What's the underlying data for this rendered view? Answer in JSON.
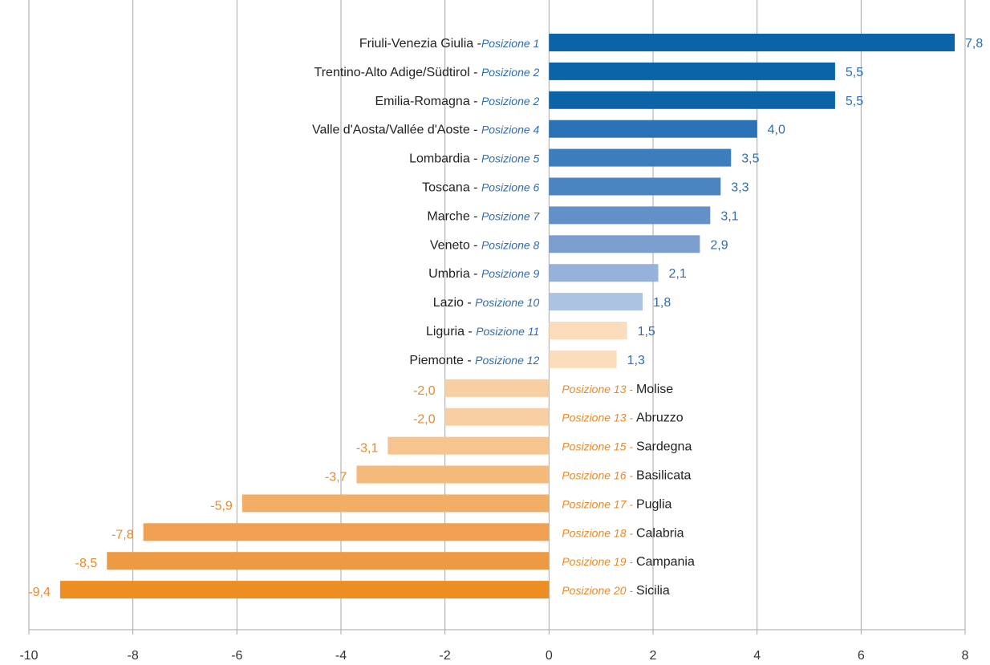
{
  "chart_data": {
    "type": "bar",
    "orientation": "horizontal",
    "xlim": [
      -10,
      8
    ],
    "xticks": [
      "-10",
      "-8",
      "-6",
      "-4",
      "-2",
      "0",
      "2",
      "4",
      "6",
      "8"
    ],
    "grid": true,
    "title": "",
    "xlabel": "",
    "ylabel": "",
    "colors": {
      "positive_text": "#2e6db4",
      "negative_text": "#e8892a",
      "label_text": "#222222"
    },
    "rows": [
      {
        "region": "Friuli-Venezia Giulia",
        "sep": " -",
        "pos": "Posizione 1",
        "value": 7.8,
        "value_label": "7,8",
        "color": "#0b64a8"
      },
      {
        "region": "Trentino-Alto Adige/Südtirol",
        "sep": " - ",
        "pos": "Posizione 2",
        "value": 5.5,
        "value_label": "5,5",
        "color": "#0b64a8"
      },
      {
        "region": "Emilia-Romagna",
        "sep": " - ",
        "pos": "Posizione 2",
        "value": 5.5,
        "value_label": "5,5",
        "color": "#0b64a8"
      },
      {
        "region": "Valle d'Aosta/Vallée d'Aoste",
        "sep": " - ",
        "pos": "Posizione 4",
        "value": 4.0,
        "value_label": "4,0",
        "color": "#2a72b5"
      },
      {
        "region": "Lombardia",
        "sep": " - ",
        "pos": "Posizione 5",
        "value": 3.5,
        "value_label": "3,5",
        "color": "#3c7dbd"
      },
      {
        "region": "Toscana",
        "sep": " - ",
        "pos": "Posizione 6",
        "value": 3.3,
        "value_label": "3,3",
        "color": "#4a85c1"
      },
      {
        "region": "Marche",
        "sep": " - ",
        "pos": "Posizione 7",
        "value": 3.1,
        "value_label": "3,1",
        "color": "#6391c7"
      },
      {
        "region": "Veneto",
        "sep": " - ",
        "pos": "Posizione 8",
        "value": 2.9,
        "value_label": "2,9",
        "color": "#7d9fd0"
      },
      {
        "region": "Umbria",
        "sep": " - ",
        "pos": "Posizione 9",
        "value": 2.1,
        "value_label": "2,1",
        "color": "#96b1da"
      },
      {
        "region": "Lazio",
        "sep": " - ",
        "pos": "Posizione 10",
        "value": 1.8,
        "value_label": "1,8",
        "color": "#adc3e2"
      },
      {
        "region": "Liguria",
        "sep": " - ",
        "pos": "Posizione 11",
        "value": 1.5,
        "value_label": "1,5",
        "color": "#fbdcbb"
      },
      {
        "region": "Piemonte",
        "sep": " - ",
        "pos": "Posizione 12",
        "value": 1.3,
        "value_label": "1,3",
        "color": "#fbdcbb"
      },
      {
        "region": "Molise",
        "sep": " - ",
        "pos": "Posizione 13",
        "value": -2.0,
        "value_label": "-2,0",
        "color": "#f8cfa2"
      },
      {
        "region": "Abruzzo",
        "sep": " - ",
        "pos": "Posizione 13",
        "value": -2.0,
        "value_label": "-2,0",
        "color": "#f8cfa2"
      },
      {
        "region": "Sardegna",
        "sep": " - ",
        "pos": "Posizione 15",
        "value": -3.1,
        "value_label": "-3,1",
        "color": "#f6c48e"
      },
      {
        "region": "Basilicata",
        "sep": " - ",
        "pos": "Posizione 16",
        "value": -3.7,
        "value_label": "-3,7",
        "color": "#f4b97b"
      },
      {
        "region": "Puglia",
        "sep": " - ",
        "pos": "Posizione 17",
        "value": -5.9,
        "value_label": "-5,9",
        "color": "#f2ad66"
      },
      {
        "region": "Calabria",
        "sep": " - ",
        "pos": "Posizione 18",
        "value": -7.8,
        "value_label": "-7,8",
        "color": "#f0a050"
      },
      {
        "region": "Campania",
        "sep": " - ",
        "pos": "Posizione 19",
        "value": -8.5,
        "value_label": "-8,5",
        "color": "#ee9a42"
      },
      {
        "region": "Sicilia",
        "sep": " - ",
        "pos": "Posizione 20",
        "value": -9.4,
        "value_label": "-9,4",
        "color": "#ec8e22"
      }
    ]
  }
}
